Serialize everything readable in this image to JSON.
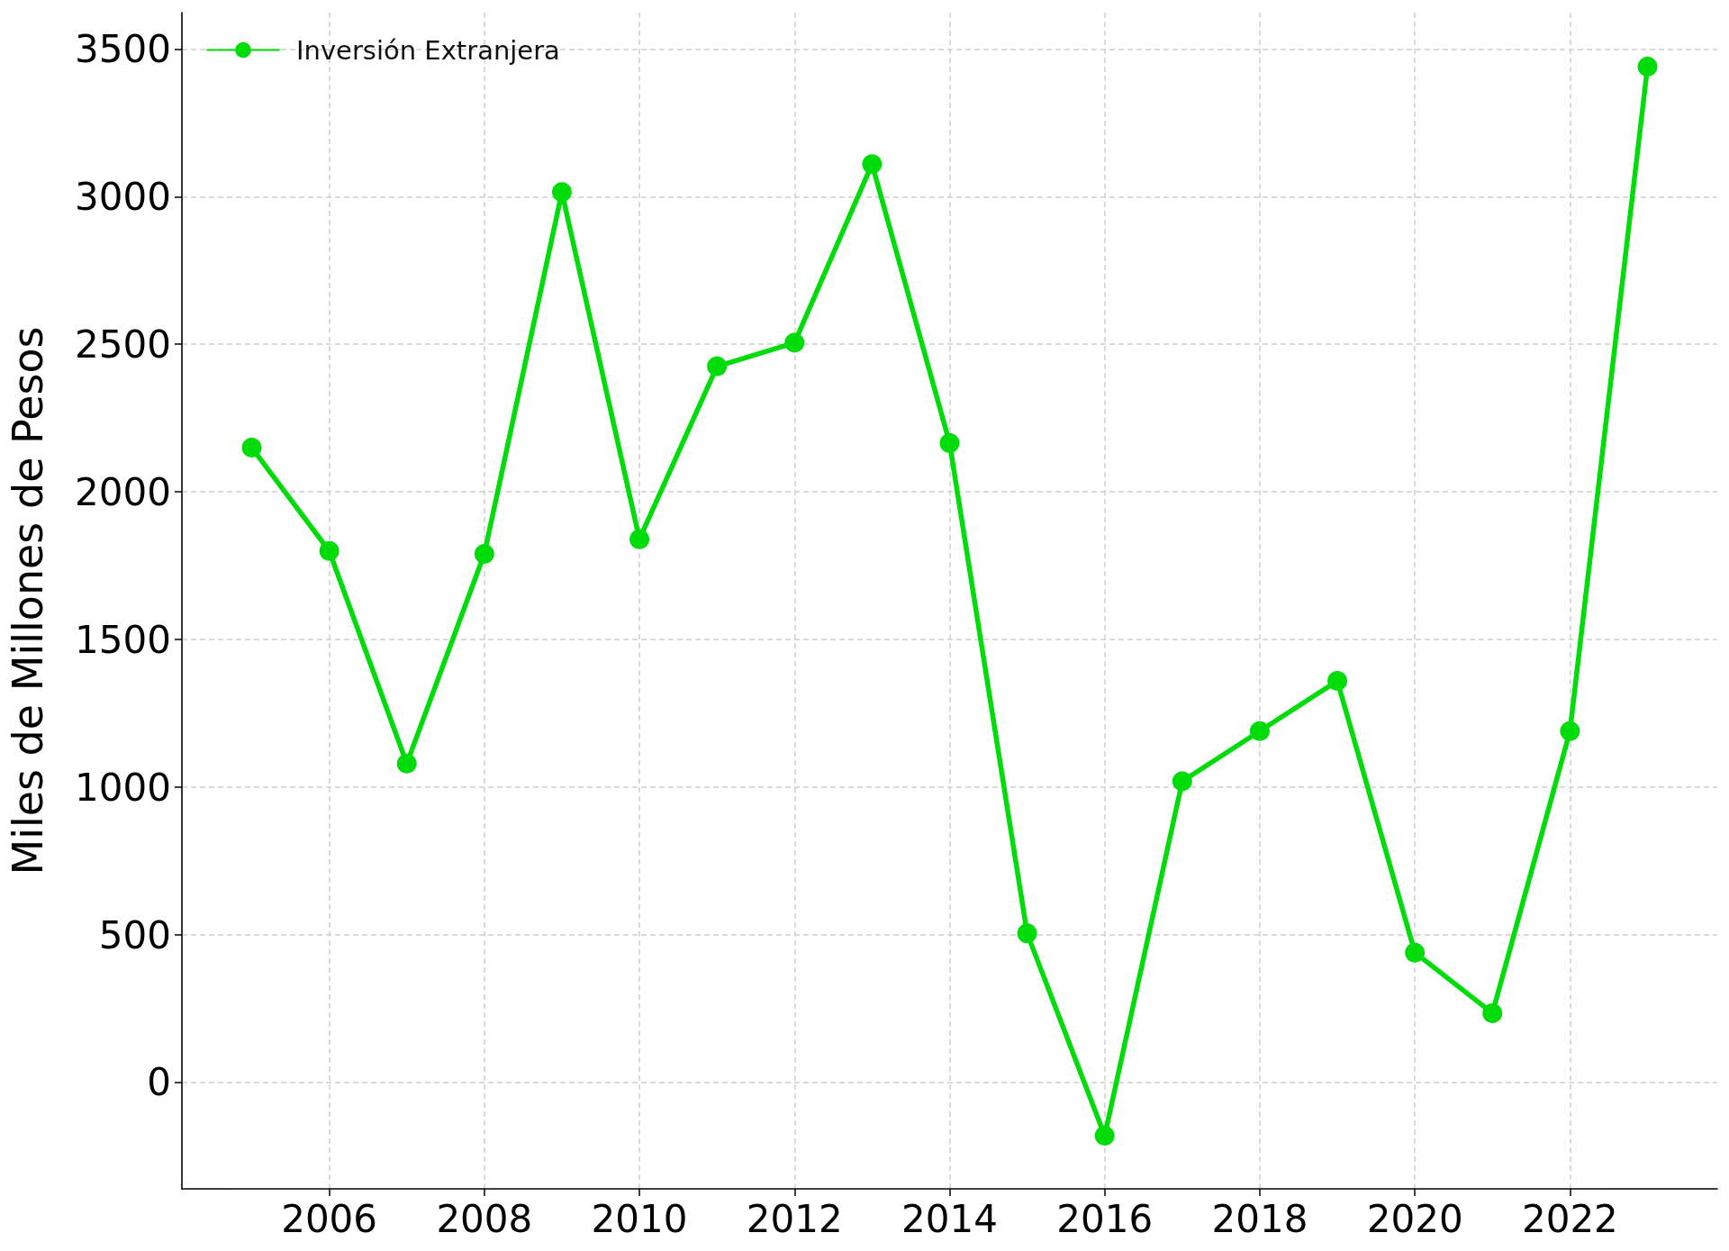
{
  "chart_data": {
    "type": "line",
    "ylabel": "Miles de Millones de Pesos",
    "x": [
      2005,
      2006,
      2007,
      2008,
      2009,
      2010,
      2011,
      2012,
      2013,
      2014,
      2015,
      2016,
      2017,
      2018,
      2019,
      2020,
      2021,
      2022,
      2023
    ],
    "series": [
      {
        "name": "Inversión Extranjera",
        "color": "#00dc0a",
        "values": [
          2150,
          1800,
          1080,
          1790,
          3015,
          1840,
          2425,
          2505,
          3110,
          2165,
          505,
          -180,
          1020,
          1190,
          1360,
          440,
          235,
          1190,
          3440
        ]
      }
    ],
    "xlim": [
      2004.1,
      2023.9
    ],
    "ylim": [
      -360,
      3623
    ],
    "xticks": [
      2006,
      2008,
      2010,
      2012,
      2014,
      2016,
      2018,
      2020,
      2022
    ],
    "yticks": [
      0,
      500,
      1000,
      1500,
      2000,
      2500,
      3000,
      3500
    ],
    "grid": true,
    "legend": "top left",
    "marker": "circle",
    "line_style": "solid"
  }
}
